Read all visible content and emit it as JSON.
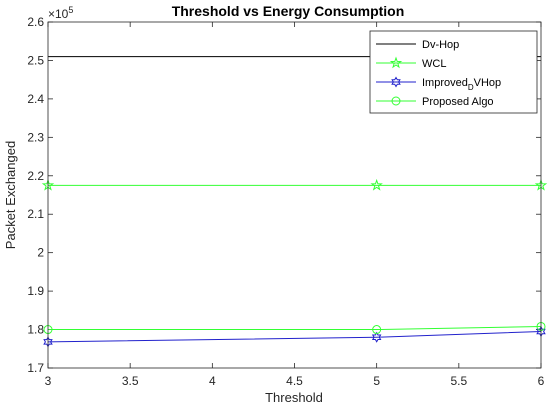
{
  "chart_data": {
    "type": "line",
    "title": "Threshold vs Energy Consumption",
    "xlabel": "Threshold",
    "ylabel": "Packet Exchanged",
    "y_exponent_label": "×10",
    "y_exponent_power": "5",
    "xlim": [
      3,
      6
    ],
    "ylim": [
      1.7,
      2.6
    ],
    "x_ticks": [
      "3",
      "3.5",
      "4",
      "4.5",
      "5",
      "5.5",
      "6"
    ],
    "y_ticks": [
      "1.7",
      "1.8",
      "1.9",
      "2",
      "2.1",
      "2.2",
      "2.3",
      "2.4",
      "2.5",
      "2.6"
    ],
    "grid": false,
    "legend_position": "top-right",
    "series": [
      {
        "name": "Dv-Hop",
        "legend_main": "Dv-Hop",
        "legend_sub": "",
        "legend_tail": "",
        "x": [
          3,
          5,
          6
        ],
        "values": [
          2.51,
          2.51,
          2.51
        ],
        "color": "#000000",
        "marker": "none"
      },
      {
        "name": "WCL",
        "legend_main": "WCL",
        "legend_sub": "",
        "legend_tail": "",
        "x": [
          3,
          5,
          6
        ],
        "values": [
          2.175,
          2.175,
          2.175
        ],
        "color": "#33ff33",
        "marker": "star"
      },
      {
        "name": "Improved_DVHop",
        "legend_main": "Improved",
        "legend_sub": "D",
        "legend_tail": "VHop",
        "x": [
          3,
          5,
          6
        ],
        "values": [
          1.768,
          1.78,
          1.795
        ],
        "color": "#2222cc",
        "marker": "hexagram"
      },
      {
        "name": "Proposed Algo",
        "legend_main": "Proposed Algo",
        "legend_sub": "",
        "legend_tail": "",
        "x": [
          3,
          5,
          6
        ],
        "values": [
          1.8,
          1.8,
          1.808
        ],
        "color": "#33ff33",
        "marker": "circle"
      }
    ]
  }
}
